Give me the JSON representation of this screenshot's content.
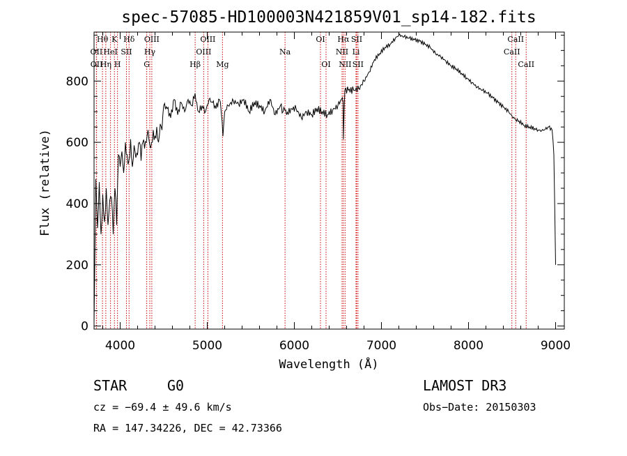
{
  "chart_data": {
    "type": "line",
    "title": "spec-57085-HD100003N421859V01_sp14-182.fits",
    "xlabel": "Wavelength (Å)",
    "ylabel": "Flux (relative)",
    "xlim": [
      3700,
      9100
    ],
    "ylim": [
      -10,
      960
    ],
    "x_ticks": [
      4000,
      5000,
      6000,
      7000,
      8000,
      9000
    ],
    "y_ticks": [
      0,
      200,
      400,
      600,
      800
    ],
    "series": [
      {
        "name": "flux",
        "x": [
          3700,
          3720,
          3740,
          3760,
          3780,
          3800,
          3820,
          3840,
          3860,
          3880,
          3900,
          3920,
          3940,
          3960,
          3980,
          4000,
          4020,
          4040,
          4060,
          4080,
          4100,
          4120,
          4140,
          4160,
          4180,
          4200,
          4220,
          4240,
          4260,
          4280,
          4300,
          4320,
          4340,
          4360,
          4380,
          4400,
          4420,
          4440,
          4460,
          4480,
          4500,
          4540,
          4580,
          4620,
          4660,
          4700,
          4740,
          4780,
          4820,
          4860,
          4880,
          4900,
          4940,
          4980,
          5020,
          5060,
          5100,
          5140,
          5160,
          5180,
          5200,
          5240,
          5300,
          5360,
          5420,
          5480,
          5540,
          5600,
          5660,
          5720,
          5780,
          5840,
          5870,
          5890,
          5910,
          5960,
          6020,
          6080,
          6140,
          6200,
          6260,
          6320,
          6380,
          6440,
          6500,
          6540,
          6560,
          6563,
          6580,
          6620,
          6680,
          6740,
          6800,
          6860,
          6920,
          6980,
          7040,
          7100,
          7160,
          7200,
          7260,
          7320,
          7380,
          7440,
          7500,
          7560,
          7620,
          7680,
          7740,
          7800,
          7860,
          7920,
          7980,
          8040,
          8100,
          8160,
          8220,
          8280,
          8340,
          8400,
          8460,
          8500,
          8540,
          8580,
          8640,
          8700,
          8760,
          8800,
          8840,
          8880,
          8920,
          8960,
          8980,
          9000
        ],
        "values": [
          10,
          480,
          320,
          470,
          300,
          430,
          340,
          450,
          330,
          410,
          420,
          300,
          450,
          330,
          560,
          520,
          570,
          500,
          600,
          560,
          540,
          610,
          520,
          590,
          550,
          560,
          600,
          540,
          600,
          580,
          600,
          640,
          590,
          600,
          640,
          620,
          650,
          600,
          660,
          640,
          720,
          710,
          680,
          740,
          690,
          730,
          700,
          740,
          720,
          760,
          730,
          700,
          720,
          700,
          740,
          730,
          710,
          740,
          700,
          620,
          700,
          720,
          735,
          725,
          740,
          700,
          730,
          720,
          700,
          740,
          690,
          720,
          700,
          705,
          690,
          710,
          710,
          680,
          700,
          690,
          710,
          700,
          690,
          705,
          720,
          740,
          730,
          610,
          770,
          770,
          770,
          775,
          800,
          830,
          870,
          890,
          910,
          920,
          940,
          950,
          945,
          940,
          935,
          930,
          920,
          910,
          890,
          880,
          865,
          850,
          840,
          825,
          810,
          795,
          780,
          770,
          760,
          745,
          730,
          715,
          700,
          685,
          675,
          670,
          655,
          650,
          645,
          640,
          638,
          642,
          650,
          640,
          560,
          200
        ]
      }
    ],
    "spectral_lines": [
      {
        "label": "Hθ",
        "x": 3797,
        "row": 1
      },
      {
        "label": "OII",
        "x": 3727,
        "row": 2
      },
      {
        "label": "OII",
        "x": 3729,
        "row": 3
      },
      {
        "label": "K",
        "x": 3934,
        "row": 1
      },
      {
        "label": "HeI",
        "x": 3889,
        "row": 2
      },
      {
        "label": "Hη",
        "x": 3835,
        "row": 3
      },
      {
        "label": "Hδ",
        "x": 4102,
        "row": 1
      },
      {
        "label": "SII",
        "x": 4072,
        "row": 2
      },
      {
        "label": "H",
        "x": 3969,
        "row": 3
      },
      {
        "label": "OIII",
        "x": 4363,
        "row": 1
      },
      {
        "label": "Hγ",
        "x": 4340,
        "row": 2
      },
      {
        "label": "G",
        "x": 4305,
        "row": 3
      },
      {
        "label": "Hβ",
        "x": 4861,
        "row": 3
      },
      {
        "label": "OIII",
        "x": 4959,
        "row": 2
      },
      {
        "label": "OIII",
        "x": 5007,
        "row": 1
      },
      {
        "label": "Mg",
        "x": 5175,
        "row": 3
      },
      {
        "label": "Na",
        "x": 5893,
        "row": 2
      },
      {
        "label": "OI",
        "x": 6300,
        "row": 1
      },
      {
        "label": "OI",
        "x": 6364,
        "row": 3
      },
      {
        "label": "Hα",
        "x": 6563,
        "row": 1
      },
      {
        "label": "NII",
        "x": 6548,
        "row": 2
      },
      {
        "label": "NII",
        "x": 6583,
        "row": 3
      },
      {
        "label": "SII",
        "x": 6716,
        "row": 1
      },
      {
        "label": "Li",
        "x": 6708,
        "row": 2
      },
      {
        "label": "SII",
        "x": 6731,
        "row": 3
      },
      {
        "label": "CaII",
        "x": 8542,
        "row": 1
      },
      {
        "label": "CaII",
        "x": 8498,
        "row": 2
      },
      {
        "label": "CaII",
        "x": 8662,
        "row": 3
      }
    ]
  },
  "info": {
    "class": "STAR",
    "subclass": "G0",
    "survey": "LAMOST DR3",
    "cz": "cz = −69.4 ± 49.6 km/s",
    "obs_date": "Obs−Date: 20150303",
    "coords": "RA = 147.34226, DEC =  42.73366"
  },
  "colors": {
    "line": "#000000",
    "marker": "#cc0000"
  }
}
